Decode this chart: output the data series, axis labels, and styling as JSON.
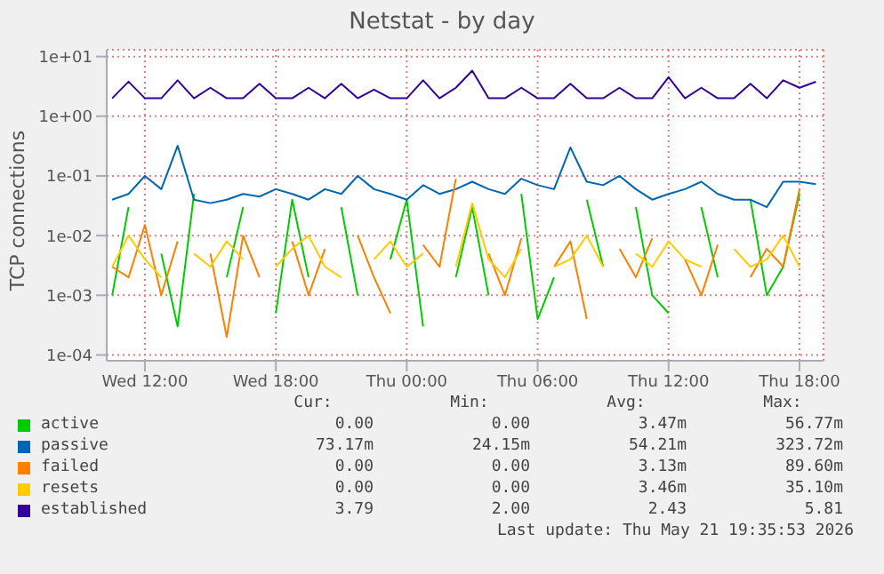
{
  "chart_data": {
    "type": "line",
    "title": "Netstat - by day",
    "ylabel": "TCP connections",
    "log": "y",
    "grid": true,
    "legend": "bottom",
    "marker": "none",
    "line_style": "solid",
    "xlim": [
      "2026-05-20T10:15",
      "2026-05-21T19:06"
    ],
    "xticks": [
      {
        "value": "2026-05-20T12:00",
        "label": "Wed 12:00"
      },
      {
        "value": "2026-05-20T18:00",
        "label": "Wed 18:00"
      },
      {
        "value": "2026-05-21T00:00",
        "label": "Thu 00:00"
      },
      {
        "value": "2026-05-21T06:00",
        "label": "Thu 06:00"
      },
      {
        "value": "2026-05-21T12:00",
        "label": "Thu 12:00"
      },
      {
        "value": "2026-05-21T18:00",
        "label": "Thu 18:00"
      }
    ],
    "ylim": [
      8e-05,
      13
    ],
    "yticks": [
      {
        "value": 0.0001,
        "label": "1e-04"
      },
      {
        "value": 0.001,
        "label": "1e-03"
      },
      {
        "value": 0.01,
        "label": "1e-02"
      },
      {
        "value": 0.1,
        "label": "1e-01"
      },
      {
        "value": 1,
        "label": "1e+00"
      },
      {
        "value": 10,
        "label": "1e+01"
      }
    ],
    "x": [
      "2026-05-20T10:30",
      "2026-05-20T11:15",
      "2026-05-20T12:00",
      "2026-05-20T12:45",
      "2026-05-20T13:30",
      "2026-05-20T14:15",
      "2026-05-20T15:00",
      "2026-05-20T15:45",
      "2026-05-20T16:30",
      "2026-05-20T17:15",
      "2026-05-20T18:00",
      "2026-05-20T18:45",
      "2026-05-20T19:30",
      "2026-05-20T20:15",
      "2026-05-20T21:00",
      "2026-05-20T21:45",
      "2026-05-20T22:30",
      "2026-05-20T23:15",
      "2026-05-21T00:00",
      "2026-05-21T00:45",
      "2026-05-21T01:30",
      "2026-05-21T02:15",
      "2026-05-21T03:00",
      "2026-05-21T03:45",
      "2026-05-21T04:30",
      "2026-05-21T05:15",
      "2026-05-21T06:00",
      "2026-05-21T06:45",
      "2026-05-21T07:30",
      "2026-05-21T08:15",
      "2026-05-21T09:00",
      "2026-05-21T09:45",
      "2026-05-21T10:30",
      "2026-05-21T11:15",
      "2026-05-21T12:00",
      "2026-05-21T12:45",
      "2026-05-21T13:30",
      "2026-05-21T14:15",
      "2026-05-21T15:00",
      "2026-05-21T15:45",
      "2026-05-21T16:30",
      "2026-05-21T17:15",
      "2026-05-21T18:00",
      "2026-05-21T18:45"
    ],
    "series": [
      {
        "name": "active",
        "color": "#00cc00",
        "values": [
          0.001,
          0.03,
          null,
          0.005,
          0.0003,
          0.05,
          null,
          0.002,
          0.03,
          null,
          0.0005,
          0.04,
          0.002,
          null,
          0.03,
          0.001,
          null,
          0.004,
          0.04,
          0.0003,
          null,
          0.002,
          0.03,
          0.001,
          null,
          0.05,
          0.0004,
          0.002,
          null,
          0.04,
          0.003,
          null,
          0.03,
          0.001,
          0.0005,
          null,
          0.03,
          0.002,
          null,
          0.04,
          0.001,
          0.003,
          0.05,
          null
        ]
      },
      {
        "name": "passive",
        "color": "#0066b3",
        "values": [
          0.04,
          0.05,
          0.1,
          0.06,
          0.32,
          0.04,
          0.035,
          0.04,
          0.05,
          0.045,
          0.06,
          0.05,
          0.04,
          0.06,
          0.05,
          0.1,
          0.06,
          0.05,
          0.04,
          0.07,
          0.05,
          0.06,
          0.08,
          0.06,
          0.05,
          0.09,
          0.07,
          0.06,
          0.3,
          0.08,
          0.07,
          0.1,
          0.06,
          0.04,
          0.05,
          0.06,
          0.08,
          0.05,
          0.04,
          0.04,
          0.03,
          0.08,
          0.08,
          0.073
        ]
      },
      {
        "name": "failed",
        "color": "#ff8000",
        "values": [
          0.003,
          0.002,
          0.015,
          0.001,
          0.008,
          null,
          0.005,
          0.0002,
          0.01,
          0.002,
          null,
          0.008,
          0.001,
          0.006,
          null,
          0.01,
          0.002,
          0.0005,
          null,
          0.007,
          0.003,
          0.09,
          null,
          0.005,
          0.001,
          0.009,
          null,
          0.003,
          0.008,
          0.0004,
          null,
          0.006,
          0.002,
          0.009,
          null,
          0.004,
          0.001,
          0.007,
          null,
          0.002,
          0.006,
          0.003,
          0.06,
          null
        ]
      },
      {
        "name": "resets",
        "color": "#ffcc00",
        "values": [
          0.003,
          0.01,
          0.004,
          0.002,
          null,
          0.005,
          0.003,
          0.008,
          0.004,
          null,
          0.003,
          0.006,
          0.01,
          0.003,
          0.002,
          null,
          0.004,
          0.008,
          0.003,
          0.005,
          null,
          0.003,
          0.035,
          0.004,
          0.002,
          0.006,
          null,
          0.003,
          0.004,
          0.01,
          0.003,
          null,
          0.005,
          0.003,
          0.008,
          0.004,
          0.003,
          null,
          0.006,
          0.003,
          0.004,
          0.01,
          0.003,
          null
        ]
      },
      {
        "name": "established",
        "color": "#330099",
        "values": [
          2,
          3.8,
          2,
          2,
          4,
          2,
          3,
          2,
          2,
          3.5,
          2,
          2,
          3,
          2,
          3.5,
          2,
          2.8,
          2,
          2,
          4,
          2,
          3,
          5.8,
          2,
          2,
          3,
          2,
          2,
          3.5,
          2,
          2,
          3,
          2,
          2,
          4.5,
          2,
          3,
          2,
          2,
          3.5,
          2,
          4,
          3,
          3.79
        ]
      }
    ],
    "annotations": [
      "Cur:",
      "Min:",
      "Avg:",
      "Max:",
      "0.00",
      "0.00",
      "3.47m",
      "56.77m",
      "73.17m",
      "24.15m",
      "54.21m",
      "323.72m",
      "0.00",
      "0.00",
      "3.13m",
      "89.60m",
      "0.00",
      "0.00",
      "3.46m",
      "35.10m",
      "3.79",
      "2.00",
      "2.43",
      "5.81",
      "Last update: Thu May 21 19:35:53 2026"
    ]
  }
}
